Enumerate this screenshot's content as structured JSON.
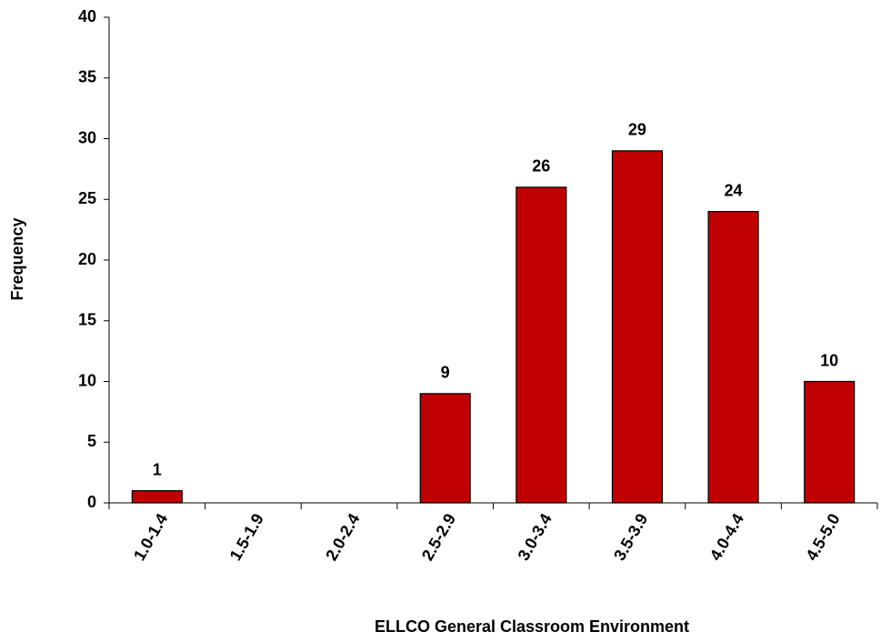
{
  "chart_data": {
    "type": "bar",
    "categories": [
      "1.0-1.4",
      "1.5-1.9",
      "2.0-2.4",
      "2.5-2.9",
      "3.0-3.4",
      "3.5-3.9",
      "4.0-4.4",
      "4.5-5.0"
    ],
    "values": [
      1,
      0,
      0,
      9,
      26,
      29,
      24,
      10
    ],
    "color": "#c00000",
    "xlabel": "ELLCO General Classroom Environment",
    "ylabel": "Frequency",
    "ylim": [
      0,
      40
    ],
    "yticks": [
      0,
      5,
      10,
      15,
      20,
      25,
      30,
      35,
      40
    ],
    "grid": false
  }
}
